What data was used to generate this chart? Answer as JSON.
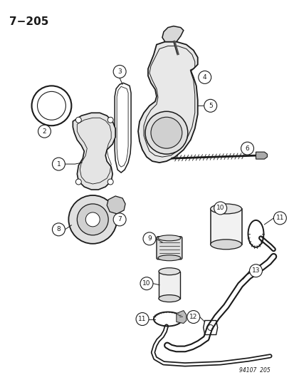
{
  "title": "7−205",
  "footer": "94107  205",
  "bg_color": "#ffffff",
  "line_color": "#1a1a1a",
  "label_font_size": 7,
  "title_font_size": 11,
  "fig_w": 4.14,
  "fig_h": 5.33,
  "dpi": 100
}
